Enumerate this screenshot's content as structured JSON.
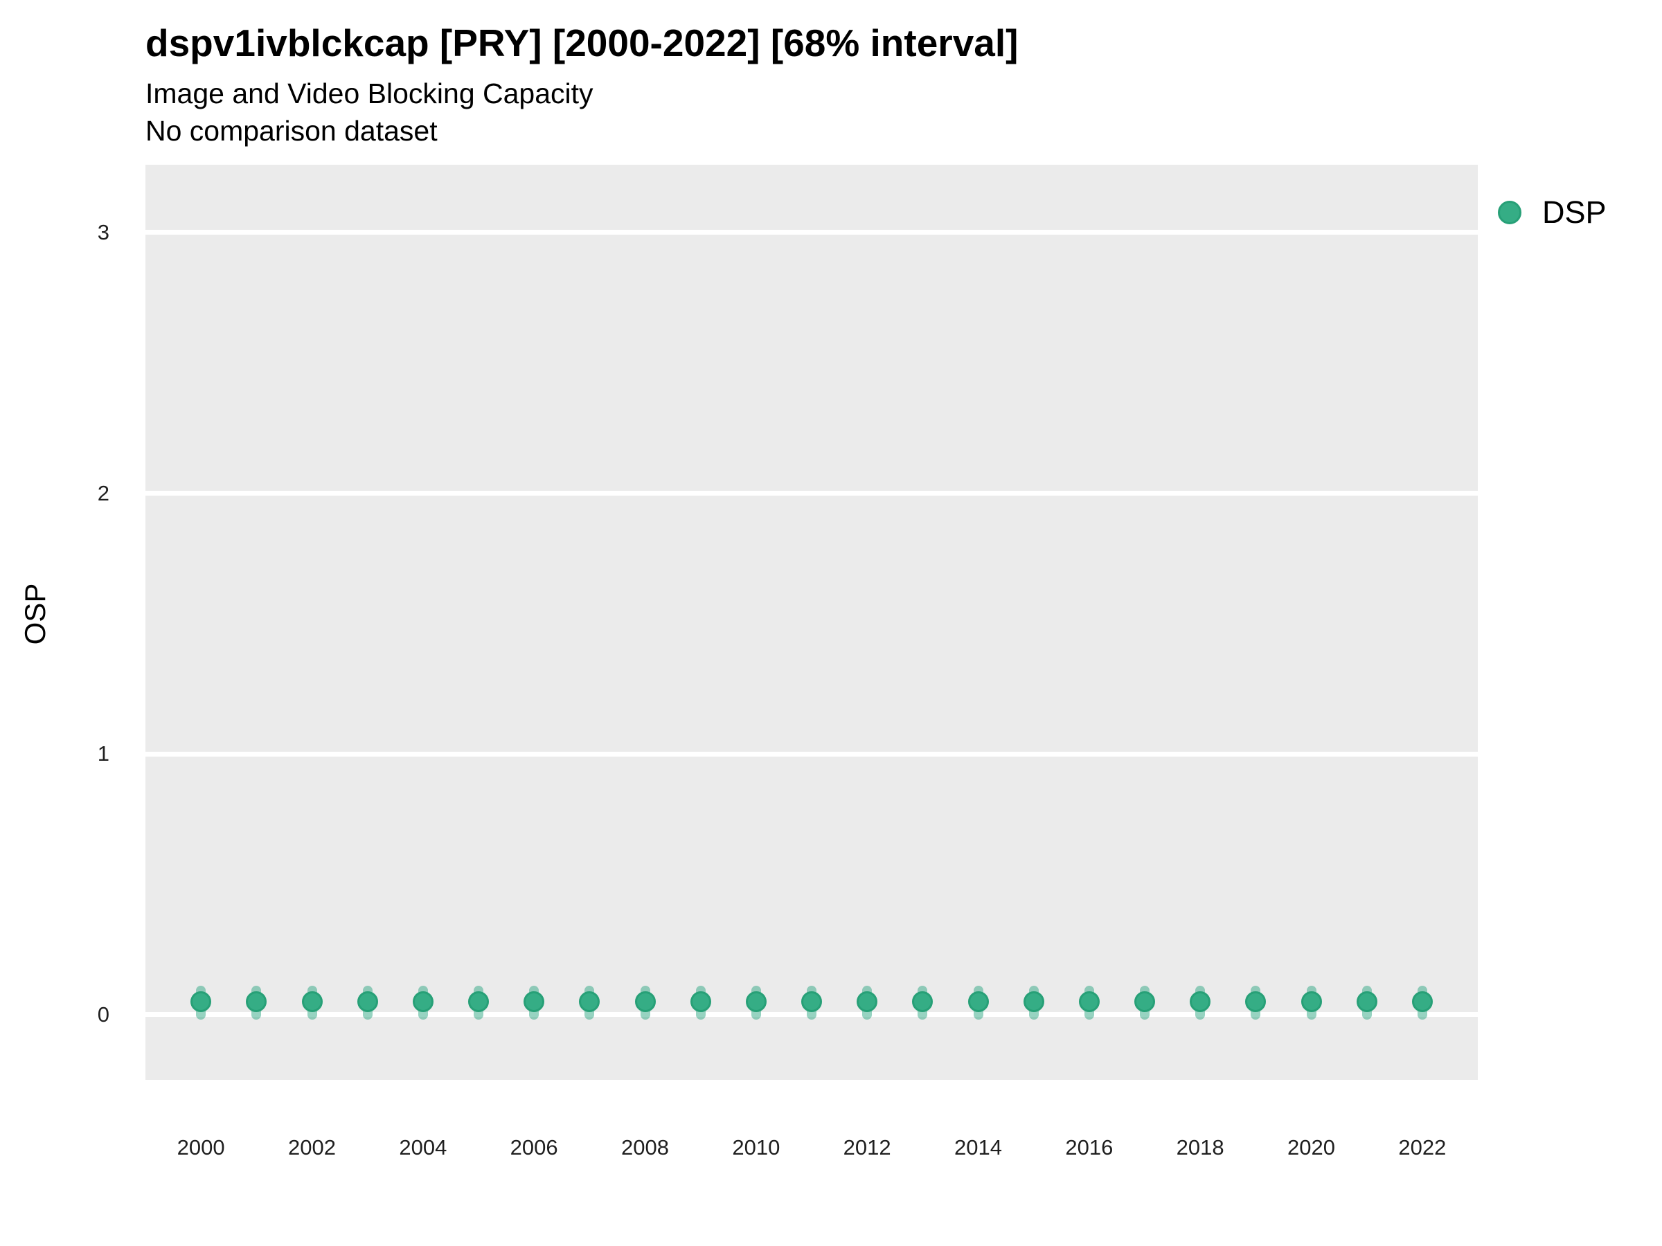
{
  "chart_data": {
    "type": "scatter",
    "title": "dspv1ivblckcap [PRY] [2000-2022] [68% interval]",
    "subtitle": "Image and Video Blocking Capacity",
    "note": "No comparison dataset",
    "xlabel": "",
    "ylabel": "OSP",
    "interval": "68%",
    "legend_position": "right-top",
    "grid": "horizontal-major-only",
    "panel_bg": "#EBEBEB",
    "grid_color": "#FFFFFF",
    "x": [
      2000,
      2001,
      2002,
      2003,
      2004,
      2005,
      2006,
      2007,
      2008,
      2009,
      2010,
      2011,
      2012,
      2013,
      2014,
      2015,
      2016,
      2017,
      2018,
      2019,
      2020,
      2021,
      2022
    ],
    "series": [
      {
        "name": "DSP",
        "point_color": "#35AD85",
        "point_stroke": "#27A077",
        "errorbar_color": "rgba(47,168,131,0.5)",
        "values": [
          0.05,
          0.05,
          0.05,
          0.05,
          0.05,
          0.05,
          0.05,
          0.05,
          0.05,
          0.05,
          0.05,
          0.05,
          0.05,
          0.05,
          0.05,
          0.05,
          0.05,
          0.05,
          0.05,
          0.05,
          0.05,
          0.05,
          0.05
        ],
        "lower": [
          -0.02,
          -0.02,
          -0.02,
          -0.02,
          -0.02,
          -0.02,
          -0.02,
          -0.02,
          -0.02,
          -0.02,
          -0.02,
          -0.02,
          -0.02,
          -0.02,
          -0.02,
          -0.02,
          -0.02,
          -0.02,
          -0.02,
          -0.02,
          -0.02,
          -0.02,
          -0.02
        ],
        "upper": [
          0.11,
          0.11,
          0.11,
          0.11,
          0.11,
          0.11,
          0.11,
          0.11,
          0.11,
          0.11,
          0.11,
          0.11,
          0.11,
          0.11,
          0.11,
          0.11,
          0.11,
          0.11,
          0.11,
          0.11,
          0.11,
          0.11,
          0.11
        ]
      }
    ],
    "xticks": [
      2000,
      2002,
      2004,
      2006,
      2008,
      2010,
      2012,
      2014,
      2016,
      2018,
      2020,
      2022
    ],
    "yticks": [
      0,
      1,
      2,
      3
    ],
    "xlim": [
      1999,
      2023
    ],
    "ylim": [
      -0.25,
      3.26
    ]
  }
}
